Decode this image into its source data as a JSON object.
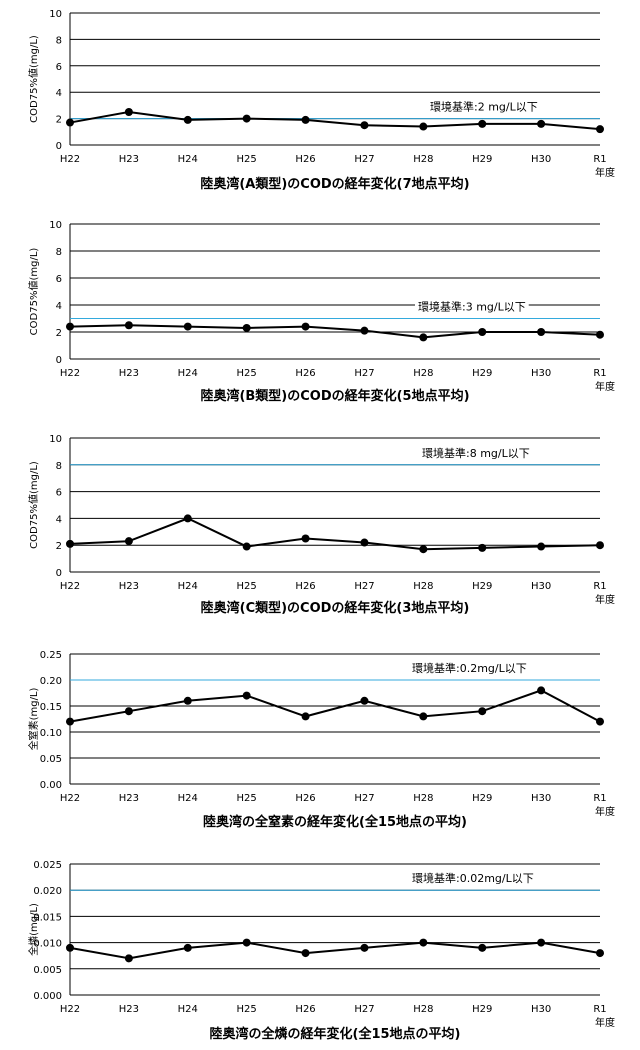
{
  "chart_data": [
    {
      "type": "line",
      "title": "陸奥湾(A類型)のCODの経年変化(7地点平均)",
      "ylabel": "COD75%値(mg/L)",
      "x_unit": "年度",
      "categories": [
        "H22",
        "H23",
        "H24",
        "H25",
        "H26",
        "H27",
        "H28",
        "H29",
        "H30",
        "R1"
      ],
      "values": [
        1.7,
        2.5,
        1.9,
        2.0,
        1.9,
        1.5,
        1.4,
        1.6,
        1.6,
        1.2
      ],
      "ylim": [
        0,
        10
      ],
      "yticks": [
        "0",
        "2",
        "4",
        "6",
        "8",
        "10"
      ],
      "standard": {
        "value": 2,
        "label": "環境基準:2 mg/L以下",
        "color": "#33aadd"
      },
      "line_color": "#000000",
      "grid": true
    },
    {
      "type": "line",
      "title": "陸奥湾(B類型)のCODの経年変化(5地点平均)",
      "ylabel": "COD75%値(mg/L)",
      "x_unit": "年度",
      "categories": [
        "H22",
        "H23",
        "H24",
        "H25",
        "H26",
        "H27",
        "H28",
        "H29",
        "H30",
        "R1"
      ],
      "values": [
        2.4,
        2.5,
        2.4,
        2.3,
        2.4,
        2.1,
        1.6,
        2.0,
        2.0,
        1.8
      ],
      "ylim": [
        0,
        10
      ],
      "yticks": [
        "0",
        "2",
        "4",
        "6",
        "8",
        "10"
      ],
      "standard": {
        "value": 3,
        "label": "環境基準:3 mg/L以下",
        "color": "#33aadd"
      },
      "line_color": "#000000",
      "grid": true
    },
    {
      "type": "line",
      "title": "陸奥湾(C類型)のCODの経年変化(3地点平均)",
      "ylabel": "COD75%値(mg/L)",
      "x_unit": "年度",
      "categories": [
        "H22",
        "H23",
        "H24",
        "H25",
        "H26",
        "H27",
        "H28",
        "H29",
        "H30",
        "R1"
      ],
      "values": [
        2.1,
        2.3,
        4.0,
        1.9,
        2.5,
        2.2,
        1.7,
        1.8,
        1.9,
        2.0
      ],
      "ylim": [
        0,
        10
      ],
      "yticks": [
        "0",
        "2",
        "4",
        "6",
        "8",
        "10"
      ],
      "standard": {
        "value": 8,
        "label": "環境基準:8 mg/L以下",
        "color": "#33aadd"
      },
      "line_color": "#000000",
      "grid": true
    },
    {
      "type": "line",
      "title": "陸奥湾の全窒素の経年変化(全15地点の平均)",
      "ylabel": "全窒素(mg/L)",
      "x_unit": "年度",
      "categories": [
        "H22",
        "H23",
        "H24",
        "H25",
        "H26",
        "H27",
        "H28",
        "H29",
        "H30",
        "R1"
      ],
      "values": [
        0.12,
        0.14,
        0.16,
        0.17,
        0.13,
        0.16,
        0.13,
        0.14,
        0.18,
        0.12
      ],
      "ylim": [
        0,
        0.25
      ],
      "yticks": [
        "0.00",
        "0.05",
        "0.10",
        "0.15",
        "0.20",
        "0.25"
      ],
      "standard": {
        "value": 0.2,
        "label": "環境基準:0.2mg/L以下",
        "color": "#33aadd"
      },
      "line_color": "#000000",
      "grid": true
    },
    {
      "type": "line",
      "title": "陸奥湾の全燐の経年変化(全15地点の平均)",
      "ylabel": "全燐(mg/L)",
      "x_unit": "年度",
      "categories": [
        "H22",
        "H23",
        "H24",
        "H25",
        "H26",
        "H27",
        "H28",
        "H29",
        "H30",
        "R1"
      ],
      "values": [
        0.009,
        0.007,
        0.009,
        0.01,
        0.008,
        0.009,
        0.01,
        0.009,
        0.01,
        0.008
      ],
      "ylim": [
        0,
        0.025
      ],
      "yticks": [
        "0.000",
        "0.005",
        "0.010",
        "0.015",
        "0.020",
        "0.025"
      ],
      "standard": {
        "value": 0.02,
        "label": "環境基準:0.02mg/L以下",
        "color": "#33aadd"
      },
      "line_color": "#000000",
      "grid": true
    }
  ]
}
